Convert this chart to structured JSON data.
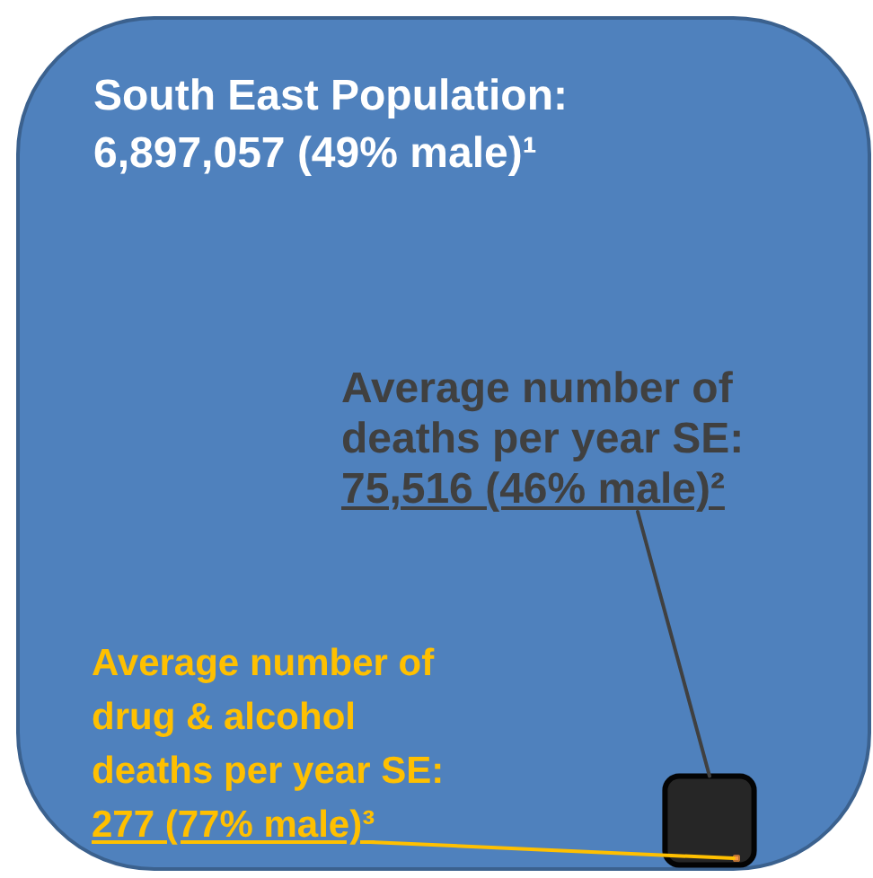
{
  "chart_data": {
    "type": "other",
    "annotations": [
      "South East Population:",
      "Average number of deaths per year SE:",
      "Average number of drug & alcohol deaths per year SE:"
    ],
    "values": [
      6897057,
      75516,
      277
    ],
    "value_labels": [
      "6,897,057 (49% male)¹",
      "75,516 (46% male)²",
      "277 (77% male)³"
    ],
    "colors": [
      "#4f81bd",
      "#262626",
      "#f79646"
    ]
  }
}
